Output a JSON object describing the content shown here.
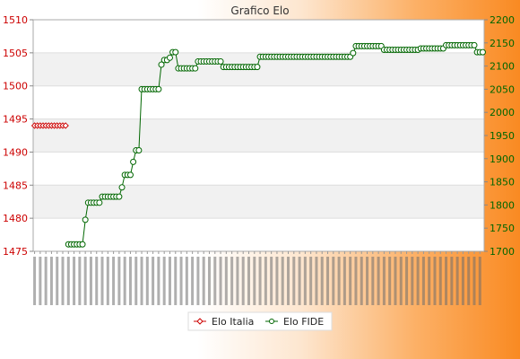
{
  "chart_data": {
    "type": "line",
    "title": "Grafico Elo",
    "xlabel": "",
    "ylabel": "",
    "legend_position": "bottom",
    "grid": true,
    "left_axis": {
      "ylim": [
        1475,
        1510
      ],
      "ticks": [
        "1475",
        "1480",
        "1485",
        "1490",
        "1495",
        "1500",
        "1505",
        "1510"
      ],
      "color": "#cc0000"
    },
    "right_axis": {
      "ylim": [
        1700,
        2200
      ],
      "ticks": [
        "1700",
        "1750",
        "1800",
        "1850",
        "1900",
        "1950",
        "2000",
        "2050",
        "2100",
        "2150",
        "2200"
      ],
      "color": "#006600"
    },
    "x_count": 160,
    "series": [
      {
        "name": "Elo Italia",
        "axis": "left",
        "color": "#cc0000",
        "marker": "diamond",
        "points": [
          [
            0,
            1494
          ],
          [
            1,
            1494
          ],
          [
            2,
            1494
          ],
          [
            3,
            1494
          ],
          [
            4,
            1494
          ],
          [
            5,
            1494
          ],
          [
            6,
            1494
          ],
          [
            7,
            1494
          ],
          [
            8,
            1494
          ],
          [
            9,
            1494
          ],
          [
            10,
            1494
          ],
          [
            11,
            1494
          ]
        ]
      },
      {
        "name": "Elo FIDE",
        "axis": "right",
        "color": "#006600",
        "marker": "circle",
        "points": [
          [
            12,
            1715
          ],
          [
            13,
            1715
          ],
          [
            14,
            1715
          ],
          [
            15,
            1715
          ],
          [
            16,
            1715
          ],
          [
            17,
            1715
          ],
          [
            18,
            1768
          ],
          [
            19,
            1805
          ],
          [
            20,
            1805
          ],
          [
            21,
            1805
          ],
          [
            22,
            1805
          ],
          [
            23,
            1805
          ],
          [
            24,
            1818
          ],
          [
            25,
            1818
          ],
          [
            26,
            1818
          ],
          [
            27,
            1818
          ],
          [
            28,
            1818
          ],
          [
            29,
            1818
          ],
          [
            30,
            1818
          ],
          [
            31,
            1838
          ],
          [
            32,
            1865
          ],
          [
            33,
            1865
          ],
          [
            34,
            1865
          ],
          [
            35,
            1893
          ],
          [
            36,
            1918
          ],
          [
            37,
            1918
          ],
          [
            38,
            2050
          ],
          [
            39,
            2050
          ],
          [
            40,
            2050
          ],
          [
            41,
            2050
          ],
          [
            42,
            2050
          ],
          [
            43,
            2050
          ],
          [
            44,
            2050
          ],
          [
            45,
            2103
          ],
          [
            46,
            2113
          ],
          [
            47,
            2113
          ],
          [
            48,
            2118
          ],
          [
            49,
            2130
          ],
          [
            50,
            2130
          ],
          [
            51,
            2095
          ],
          [
            52,
            2095
          ],
          [
            53,
            2095
          ],
          [
            54,
            2095
          ],
          [
            55,
            2095
          ],
          [
            56,
            2095
          ],
          [
            57,
            2095
          ],
          [
            58,
            2110
          ],
          [
            59,
            2110
          ],
          [
            60,
            2110
          ],
          [
            61,
            2110
          ],
          [
            62,
            2110
          ],
          [
            63,
            2110
          ],
          [
            64,
            2110
          ],
          [
            65,
            2110
          ],
          [
            66,
            2110
          ],
          [
            67,
            2098
          ],
          [
            68,
            2098
          ],
          [
            69,
            2098
          ],
          [
            70,
            2098
          ],
          [
            71,
            2098
          ],
          [
            72,
            2098
          ],
          [
            73,
            2098
          ],
          [
            74,
            2098
          ],
          [
            75,
            2098
          ],
          [
            76,
            2098
          ],
          [
            77,
            2098
          ],
          [
            78,
            2098
          ],
          [
            79,
            2098
          ],
          [
            80,
            2120
          ],
          [
            81,
            2120
          ],
          [
            82,
            2120
          ],
          [
            83,
            2120
          ],
          [
            84,
            2120
          ],
          [
            85,
            2120
          ],
          [
            86,
            2120
          ],
          [
            87,
            2120
          ],
          [
            88,
            2120
          ],
          [
            89,
            2120
          ],
          [
            90,
            2120
          ],
          [
            91,
            2120
          ],
          [
            92,
            2120
          ],
          [
            93,
            2120
          ],
          [
            94,
            2120
          ],
          [
            95,
            2120
          ],
          [
            96,
            2120
          ],
          [
            97,
            2120
          ],
          [
            98,
            2120
          ],
          [
            99,
            2120
          ],
          [
            100,
            2120
          ],
          [
            101,
            2120
          ],
          [
            102,
            2120
          ],
          [
            103,
            2120
          ],
          [
            104,
            2120
          ],
          [
            105,
            2120
          ],
          [
            106,
            2120
          ],
          [
            107,
            2120
          ],
          [
            108,
            2120
          ],
          [
            109,
            2120
          ],
          [
            110,
            2120
          ],
          [
            111,
            2120
          ],
          [
            112,
            2120
          ],
          [
            113,
            2128
          ],
          [
            114,
            2143
          ],
          [
            115,
            2143
          ],
          [
            116,
            2143
          ],
          [
            117,
            2143
          ],
          [
            118,
            2143
          ],
          [
            119,
            2143
          ],
          [
            120,
            2143
          ],
          [
            121,
            2143
          ],
          [
            122,
            2143
          ],
          [
            123,
            2143
          ],
          [
            124,
            2135
          ],
          [
            125,
            2135
          ],
          [
            126,
            2135
          ],
          [
            127,
            2135
          ],
          [
            128,
            2135
          ],
          [
            129,
            2135
          ],
          [
            130,
            2135
          ],
          [
            131,
            2135
          ],
          [
            132,
            2135
          ],
          [
            133,
            2135
          ],
          [
            134,
            2135
          ],
          [
            135,
            2135
          ],
          [
            136,
            2135
          ],
          [
            137,
            2138
          ],
          [
            138,
            2138
          ],
          [
            139,
            2138
          ],
          [
            140,
            2138
          ],
          [
            141,
            2138
          ],
          [
            142,
            2138
          ],
          [
            143,
            2138
          ],
          [
            144,
            2138
          ],
          [
            145,
            2138
          ],
          [
            146,
            2145
          ],
          [
            147,
            2145
          ],
          [
            148,
            2145
          ],
          [
            149,
            2145
          ],
          [
            150,
            2145
          ],
          [
            151,
            2145
          ],
          [
            152,
            2145
          ],
          [
            153,
            2145
          ],
          [
            154,
            2145
          ],
          [
            155,
            2145
          ],
          [
            156,
            2145
          ],
          [
            157,
            2130
          ],
          [
            158,
            2130
          ],
          [
            159,
            2130
          ]
        ]
      }
    ]
  }
}
